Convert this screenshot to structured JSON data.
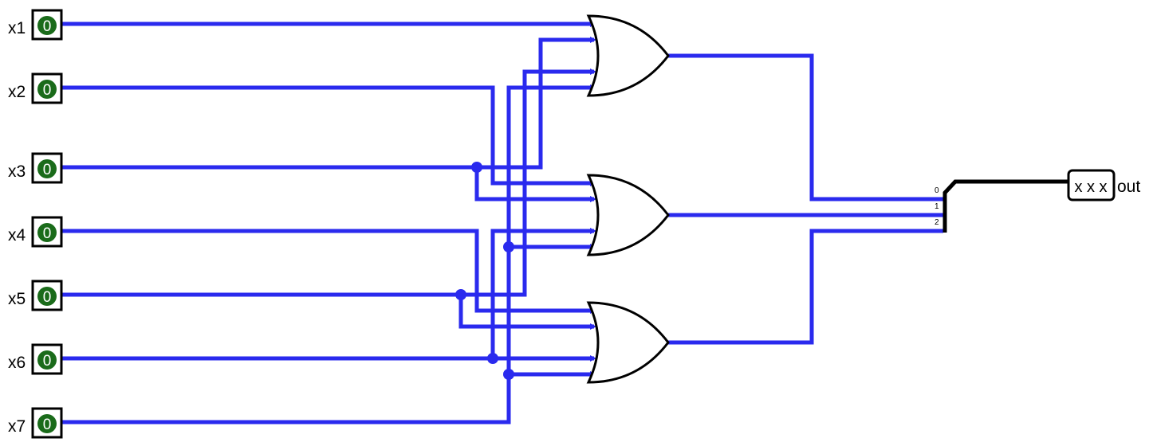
{
  "colors": {
    "wire": "#2a2aee",
    "pin_fill": "#1a6b1a",
    "pin_text": "#ffffff",
    "bus": "#000000"
  },
  "inputs": [
    {
      "name": "x1",
      "value": "0"
    },
    {
      "name": "x2",
      "value": "0"
    },
    {
      "name": "x3",
      "value": "0"
    },
    {
      "name": "x4",
      "value": "0"
    },
    {
      "name": "x5",
      "value": "0"
    },
    {
      "name": "x6",
      "value": "0"
    },
    {
      "name": "x7",
      "value": "0"
    }
  ],
  "gates": [
    {
      "type": "OR",
      "inputs": 4
    },
    {
      "type": "OR",
      "inputs": 4
    },
    {
      "type": "OR",
      "inputs": 4
    }
  ],
  "splitter": {
    "bits": [
      "0",
      "1",
      "2"
    ]
  },
  "output": {
    "name": "out",
    "value": "x x x"
  }
}
